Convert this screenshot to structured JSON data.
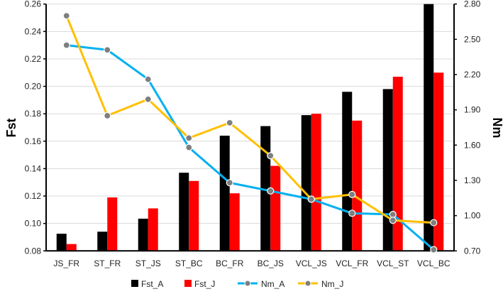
{
  "chart_data": {
    "type": "bar+line",
    "categories": [
      "JS_FR",
      "ST_FR",
      "ST_JS",
      "ST_BC",
      "BC_FR",
      "BC_JS",
      "VCL_JS",
      "VCL_FR",
      "VCL_ST",
      "VCL_BC"
    ],
    "ylabel": "Fst",
    "y2label": "Nm",
    "ylim": [
      0.08,
      0.26
    ],
    "y2lim": [
      0.7,
      2.8
    ],
    "yticks": [
      "0.08",
      "0.10",
      "0.12",
      "0.14",
      "0.16",
      "0.18",
      "0.20",
      "0.22",
      "0.24",
      "0.26"
    ],
    "y2ticks": [
      "0.70",
      "1.00",
      "1.30",
      "1.60",
      "1.90",
      "2.20",
      "2.50",
      "2.80"
    ],
    "grid": true,
    "legend": "bottom",
    "bars": [
      {
        "name": "Fst_A",
        "color": "#000000",
        "values": [
          0.0925,
          0.094,
          0.1035,
          0.137,
          0.164,
          0.171,
          0.179,
          0.196,
          0.198,
          0.26
        ]
      },
      {
        "name": "Fst_J",
        "color": "#ff0000",
        "values": [
          0.085,
          0.119,
          0.111,
          0.131,
          0.122,
          0.142,
          0.18,
          0.175,
          0.207,
          0.21
        ]
      }
    ],
    "lines": [
      {
        "name": "Nm_A",
        "color": "#00b0f0",
        "values": [
          2.45,
          2.41,
          2.16,
          1.58,
          1.28,
          1.21,
          1.14,
          1.02,
          1.01,
          0.71
        ]
      },
      {
        "name": "Nm_J",
        "color": "#ffc000",
        "values": [
          2.7,
          1.85,
          1.99,
          1.66,
          1.79,
          1.51,
          1.14,
          1.18,
          0.96,
          0.94
        ]
      }
    ],
    "marker_color": "#7f7f7f"
  }
}
